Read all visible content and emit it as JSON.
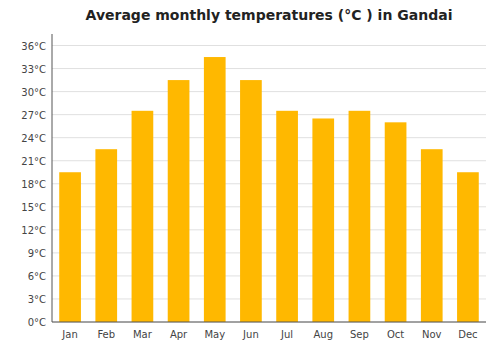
{
  "chart_data": {
    "type": "bar",
    "title": "Average monthly temperatures (°C ) in Gandai",
    "categories": [
      "Jan",
      "Feb",
      "Mar",
      "Apr",
      "May",
      "Jun",
      "Jul",
      "Aug",
      "Sep",
      "Oct",
      "Nov",
      "Dec"
    ],
    "values": [
      19.5,
      22.5,
      27.5,
      31.5,
      34.5,
      31.5,
      27.5,
      26.5,
      27.5,
      26.0,
      22.5,
      19.5
    ],
    "color": "#FFB800",
    "ylim": [
      0,
      37.5
    ],
    "yticks": [
      {
        "value": 0,
        "label": "0°C"
      },
      {
        "value": 3,
        "label": "3°C"
      },
      {
        "value": 6,
        "label": "6°C"
      },
      {
        "value": 9,
        "label": "9°C"
      },
      {
        "value": 12,
        "label": "12°C"
      },
      {
        "value": 15,
        "label": "15°C"
      },
      {
        "value": 18,
        "label": "18°C"
      },
      {
        "value": 21,
        "label": "21°C"
      },
      {
        "value": 24,
        "label": "24°C"
      },
      {
        "value": 27,
        "label": "27°C"
      },
      {
        "value": 30,
        "label": "30°C"
      },
      {
        "value": 33,
        "label": "33°C"
      },
      {
        "value": 36,
        "label": "36°C"
      }
    ],
    "grid": true
  }
}
